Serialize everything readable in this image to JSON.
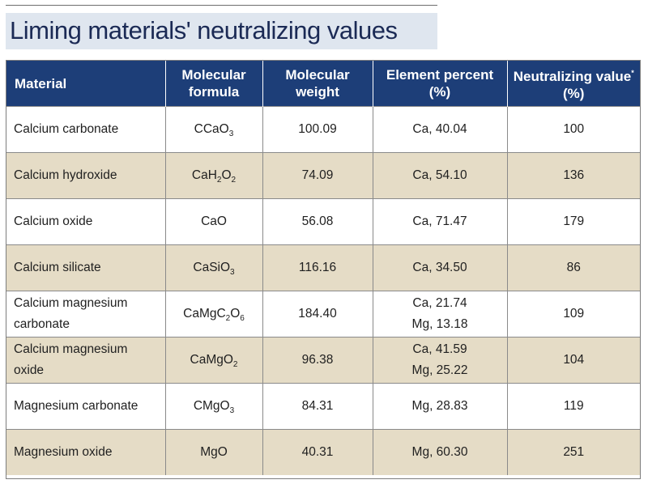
{
  "title": "Liming materials' neutralizing values",
  "table": {
    "headers": [
      {
        "main": "Material",
        "sup": ""
      },
      {
        "main": "Molecular formula",
        "sup": ""
      },
      {
        "main": "Molecular weight",
        "sup": ""
      },
      {
        "main": "Element percent (%)",
        "sup": ""
      },
      {
        "main": "Neutralizing value",
        "sup": "*",
        "tail": " (%)"
      }
    ],
    "rows": [
      {
        "material": "Calcium carbonate",
        "formula": [
          [
            "CCaO",
            ""
          ],
          [
            "3",
            "sub"
          ]
        ],
        "weight": "100.09",
        "element": [
          "Ca, 40.04"
        ],
        "value": "100"
      },
      {
        "material": "Calcium hydroxide",
        "formula": [
          [
            "CaH",
            ""
          ],
          [
            "2",
            "sub"
          ],
          [
            "O",
            ""
          ],
          [
            "2",
            "sub"
          ]
        ],
        "weight": "74.09",
        "element": [
          "Ca, 54.10"
        ],
        "value": "136"
      },
      {
        "material": "Calcium oxide",
        "formula": [
          [
            "CaO",
            ""
          ]
        ],
        "weight": "56.08",
        "element": [
          "Ca, 71.47"
        ],
        "value": "179"
      },
      {
        "material": "Calcium silicate",
        "formula": [
          [
            "CaSiO",
            ""
          ],
          [
            "3",
            "sub"
          ]
        ],
        "weight": "116.16",
        "element": [
          "Ca, 34.50"
        ],
        "value": "86"
      },
      {
        "material": "Calcium magnesium carbonate",
        "formula": [
          [
            "CaMgC",
            ""
          ],
          [
            "2",
            "sub"
          ],
          [
            "O",
            ""
          ],
          [
            "6",
            "sub"
          ]
        ],
        "weight": "184.40",
        "element": [
          "Ca, 21.74",
          "Mg, 13.18"
        ],
        "value": "109"
      },
      {
        "material": "Calcium magnesium oxide",
        "formula": [
          [
            "CaMgO",
            ""
          ],
          [
            "2",
            "sub"
          ]
        ],
        "weight": "96.38",
        "element": [
          "Ca, 41.59",
          "Mg, 25.22"
        ],
        "value": "104"
      },
      {
        "material": "Magnesium carbonate",
        "formula": [
          [
            "CMgO",
            ""
          ],
          [
            "3",
            "sub"
          ]
        ],
        "weight": "84.31",
        "element": [
          "Mg, 28.83"
        ],
        "value": "119"
      },
      {
        "material": "Magnesium oxide",
        "formula": [
          [
            "MgO",
            ""
          ]
        ],
        "weight": "40.31",
        "element": [
          "Mg, 60.30"
        ],
        "value": "251"
      }
    ]
  },
  "colors": {
    "header_bg": "#1d3e78",
    "title_band": "#dfe6ef",
    "title_text": "#1b2a55",
    "stripe": "#e5dcc6"
  }
}
